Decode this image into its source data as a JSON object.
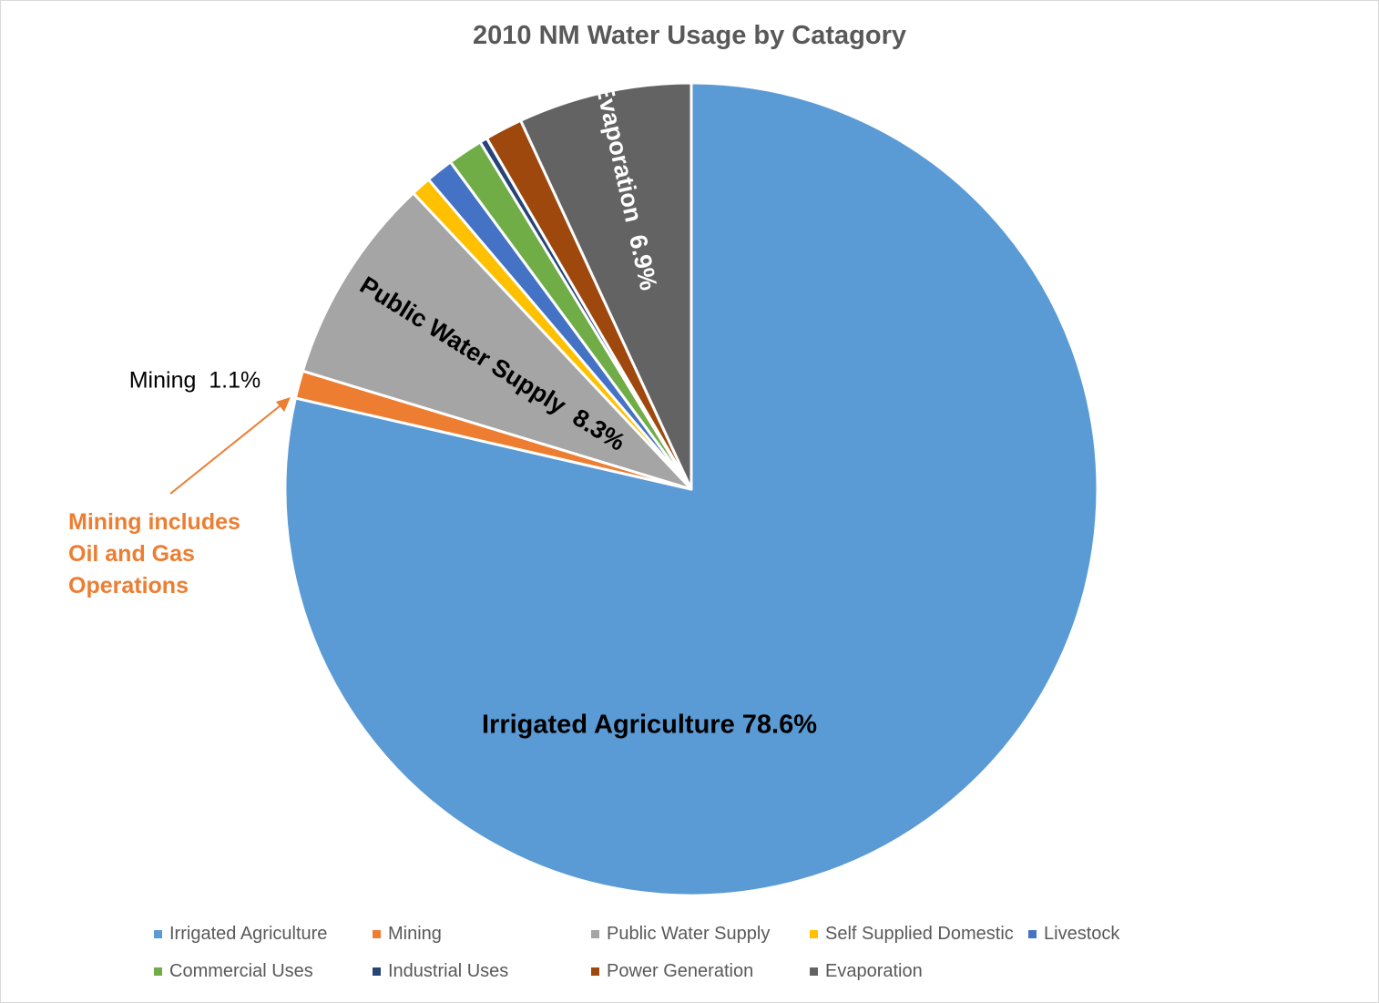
{
  "chart_data": {
    "type": "pie",
    "title": "2010 NM Water Usage by Catagory",
    "start_angle_deg": 0,
    "direction": "clockwise",
    "slices": [
      {
        "name": "Irrigated Agriculture",
        "value": 78.6,
        "color": "#5b9bd5",
        "label": "Irrigated Agriculture 78.6%"
      },
      {
        "name": "Mining",
        "value": 1.1,
        "color": "#ed7d31",
        "label": "Mining  1.1%"
      },
      {
        "name": "Public Water Supply",
        "value": 8.3,
        "color": "#a5a5a5",
        "label": "Public Water Supply  8.3%"
      },
      {
        "name": "Self Supplied Domestic",
        "value": 0.8,
        "color": "#ffc000",
        "label": ""
      },
      {
        "name": "Livestock",
        "value": 1.1,
        "color": "#4472c4",
        "label": ""
      },
      {
        "name": "Commercial Uses",
        "value": 1.4,
        "color": "#70ad47",
        "label": ""
      },
      {
        "name": "Industrial Uses",
        "value": 0.3,
        "color": "#264478",
        "label": ""
      },
      {
        "name": "Power Generation",
        "value": 1.5,
        "color": "#9e480e",
        "label": ""
      },
      {
        "name": "Evaporation",
        "value": 6.9,
        "color": "#636363",
        "label": "Evaporation  6.9%"
      }
    ],
    "annotation": {
      "lines": [
        "Mining includes",
        "Oil and Gas",
        "Operations"
      ],
      "color": "#ed7d31"
    },
    "legend_position": "bottom"
  }
}
